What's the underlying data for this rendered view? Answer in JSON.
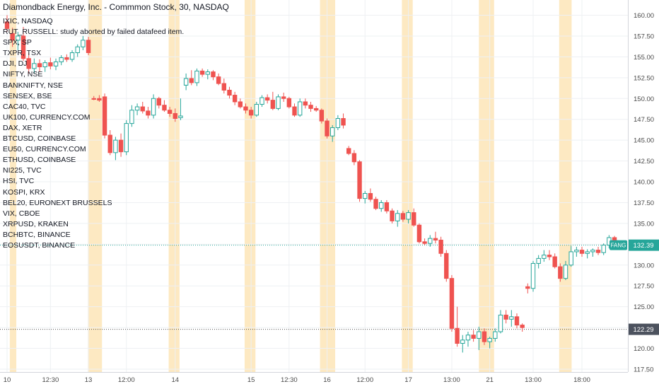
{
  "header": {
    "title": "Diamondback Energy, Inc. - Commmon Stock, 30, NASDAQ"
  },
  "legend": {
    "items": [
      "IXIC, NASDAQ",
      "RUT_RUSSELL: study aborted by failed datafeed item.",
      "SPX, SP",
      "TXPR, TSX",
      "DJI, DJ",
      "NIFTY, NSE",
      "BANKNIFTY, NSE",
      "SENSEX, BSE",
      "CAC40, TVC",
      "UK100, CURRENCY.COM",
      "DAX, XETR",
      "BTCUSD, COINBASE",
      "EU50, CURRENCY.COM",
      "ETHUSD, COINBASE",
      "NI225, TVC",
      "HSI, TVC",
      "KOSPI, KRX",
      "BEL20, EURONEXT BRUSSELS",
      "VIX, CBOE",
      "XRPUSD, KRAKEN",
      "BCHBTC, BINANCE",
      "EOSUSDT, BINANCE"
    ]
  },
  "price_labels": {
    "symbol_tag": "FANG",
    "last_price": "132.39",
    "crosshair_price": "122.29"
  },
  "colors": {
    "up": "#26a69a",
    "down": "#ef5350",
    "session_band": "#fde9c2",
    "grid": "#eef0f3",
    "price_tag": "#26a69a"
  },
  "chart_data": {
    "type": "candlestick",
    "title": "Diamondback Energy, Inc. - Commmon Stock, 30, NASDAQ",
    "interval": "30",
    "y_ticks": [
      117.5,
      120.0,
      122.5,
      125.0,
      127.5,
      130.0,
      132.5,
      135.0,
      137.5,
      140.0,
      142.5,
      145.0,
      147.5,
      150.0,
      152.5,
      155.0,
      157.5,
      160.0
    ],
    "ylim": [
      117.3,
      160.6
    ],
    "x_tick_labels": [
      {
        "label": "10",
        "bar": 0
      },
      {
        "label": "12:30",
        "bar": 8
      },
      {
        "label": "13",
        "bar": 15
      },
      {
        "label": "12:00",
        "bar": 22
      },
      {
        "label": "14",
        "bar": 31
      },
      {
        "label": "15",
        "bar": 45
      },
      {
        "label": "12:30",
        "bar": 52
      },
      {
        "label": "16",
        "bar": 59
      },
      {
        "label": "12:00",
        "bar": 66
      },
      {
        "label": "17",
        "bar": 74
      },
      {
        "label": "13:00",
        "bar": 82
      },
      {
        "label": "21",
        "bar": 89
      },
      {
        "label": "13:00",
        "bar": 97
      },
      {
        "label": "18:00",
        "bar": 106
      }
    ],
    "session_bands": [
      [
        1,
        1.2
      ],
      [
        15.4,
        17.0
      ],
      [
        30.3,
        31.3
      ],
      [
        44.3,
        45.3
      ],
      [
        58.2,
        60.0
      ],
      [
        73.3,
        74.3
      ],
      [
        87.5,
        89.3
      ],
      [
        102.3,
        103.6
      ]
    ],
    "last_price": 132.39,
    "crosshair_price": 122.29,
    "candles": [
      {
        "o": 159.2,
        "h": 160.0,
        "l": 158.0,
        "c": 158.4
      },
      {
        "o": 157.8,
        "h": 158.5,
        "l": 156.2,
        "c": 157.0
      },
      {
        "o": 157.0,
        "h": 158.0,
        "l": 155.8,
        "c": 157.5
      },
      {
        "o": 157.5,
        "h": 158.6,
        "l": 154.5,
        "c": 154.8
      },
      {
        "o": 154.8,
        "h": 155.5,
        "l": 153.0,
        "c": 153.6
      },
      {
        "o": 153.6,
        "h": 154.8,
        "l": 153.0,
        "c": 154.2
      },
      {
        "o": 154.2,
        "h": 154.7,
        "l": 153.2,
        "c": 153.8
      },
      {
        "o": 153.8,
        "h": 154.6,
        "l": 153.2,
        "c": 154.3
      },
      {
        "o": 154.3,
        "h": 154.9,
        "l": 153.5,
        "c": 153.9
      },
      {
        "o": 153.9,
        "h": 154.8,
        "l": 153.4,
        "c": 154.4
      },
      {
        "o": 154.4,
        "h": 155.2,
        "l": 154.0,
        "c": 154.9
      },
      {
        "o": 154.9,
        "h": 155.3,
        "l": 154.4,
        "c": 154.7
      },
      {
        "o": 154.7,
        "h": 155.8,
        "l": 154.4,
        "c": 155.5
      },
      {
        "o": 155.5,
        "h": 156.5,
        "l": 155.0,
        "c": 156.2
      },
      {
        "o": 156.2,
        "h": 157.5,
        "l": 155.8,
        "c": 157.0
      },
      {
        "o": 157.0,
        "h": 157.4,
        "l": 155.2,
        "c": 155.5
      },
      {
        "o": 150.0,
        "h": 150.3,
        "l": 149.8,
        "c": 149.9
      },
      {
        "o": 150.0,
        "h": 150.4,
        "l": 149.6,
        "c": 149.8
      },
      {
        "o": 150.2,
        "h": 150.6,
        "l": 145.2,
        "c": 145.6
      },
      {
        "o": 145.6,
        "h": 146.2,
        "l": 143.2,
        "c": 143.5
      },
      {
        "o": 143.5,
        "h": 145.4,
        "l": 142.6,
        "c": 145.0
      },
      {
        "o": 145.0,
        "h": 145.8,
        "l": 143.0,
        "c": 143.6
      },
      {
        "o": 143.6,
        "h": 147.4,
        "l": 143.2,
        "c": 147.0
      },
      {
        "o": 147.0,
        "h": 149.2,
        "l": 146.6,
        "c": 148.6
      },
      {
        "o": 148.6,
        "h": 149.4,
        "l": 148.0,
        "c": 149.0
      },
      {
        "o": 149.0,
        "h": 149.6,
        "l": 148.2,
        "c": 148.5
      },
      {
        "o": 148.5,
        "h": 149.0,
        "l": 147.6,
        "c": 148.0
      },
      {
        "o": 148.0,
        "h": 150.5,
        "l": 147.6,
        "c": 150.0
      },
      {
        "o": 150.0,
        "h": 150.2,
        "l": 148.8,
        "c": 149.2
      },
      {
        "o": 149.2,
        "h": 149.8,
        "l": 148.4,
        "c": 148.6
      },
      {
        "o": 148.6,
        "h": 149.0,
        "l": 147.8,
        "c": 148.2
      },
      {
        "o": 148.2,
        "h": 148.8,
        "l": 147.2,
        "c": 147.6
      },
      {
        "o": 147.7,
        "h": 150.0,
        "l": 147.4,
        "c": 147.9
      },
      {
        "o": 151.6,
        "h": 153.0,
        "l": 151.0,
        "c": 152.4
      },
      {
        "o": 152.4,
        "h": 153.4,
        "l": 151.6,
        "c": 151.9
      },
      {
        "o": 151.9,
        "h": 153.6,
        "l": 151.5,
        "c": 153.3
      },
      {
        "o": 153.3,
        "h": 153.6,
        "l": 152.6,
        "c": 152.9
      },
      {
        "o": 152.9,
        "h": 153.5,
        "l": 152.3,
        "c": 153.2
      },
      {
        "o": 153.2,
        "h": 153.4,
        "l": 152.2,
        "c": 152.6
      },
      {
        "o": 152.6,
        "h": 153.0,
        "l": 151.6,
        "c": 151.8
      },
      {
        "o": 151.8,
        "h": 152.4,
        "l": 150.6,
        "c": 151.0
      },
      {
        "o": 151.0,
        "h": 151.4,
        "l": 150.0,
        "c": 150.4
      },
      {
        "o": 150.4,
        "h": 150.8,
        "l": 149.2,
        "c": 149.6
      },
      {
        "o": 149.6,
        "h": 150.0,
        "l": 148.8,
        "c": 149.0
      },
      {
        "o": 149.0,
        "h": 149.4,
        "l": 148.2,
        "c": 148.6
      },
      {
        "o": 148.6,
        "h": 149.0,
        "l": 147.6,
        "c": 148.0
      },
      {
        "o": 148.0,
        "h": 149.6,
        "l": 147.8,
        "c": 149.3
      },
      {
        "o": 149.3,
        "h": 150.4,
        "l": 149.0,
        "c": 150.1
      },
      {
        "o": 150.1,
        "h": 150.5,
        "l": 149.4,
        "c": 149.8
      },
      {
        "o": 149.8,
        "h": 150.8,
        "l": 148.6,
        "c": 148.8
      },
      {
        "o": 148.8,
        "h": 150.5,
        "l": 148.6,
        "c": 150.2
      },
      {
        "o": 150.2,
        "h": 150.7,
        "l": 149.6,
        "c": 150.0
      },
      {
        "o": 150.0,
        "h": 150.2,
        "l": 148.8,
        "c": 149.0
      },
      {
        "o": 149.0,
        "h": 149.4,
        "l": 147.8,
        "c": 148.0
      },
      {
        "o": 148.0,
        "h": 150.0,
        "l": 147.8,
        "c": 149.6
      },
      {
        "o": 149.6,
        "h": 150.0,
        "l": 148.8,
        "c": 149.2
      },
      {
        "o": 149.2,
        "h": 149.6,
        "l": 148.4,
        "c": 148.8
      },
      {
        "o": 148.8,
        "h": 149.1,
        "l": 148.4,
        "c": 148.6
      },
      {
        "o": 148.6,
        "h": 148.8,
        "l": 147.0,
        "c": 147.3
      },
      {
        "o": 147.3,
        "h": 147.6,
        "l": 145.2,
        "c": 145.5
      },
      {
        "o": 145.5,
        "h": 146.8,
        "l": 144.8,
        "c": 146.5
      },
      {
        "o": 146.5,
        "h": 148.0,
        "l": 146.2,
        "c": 147.6
      },
      {
        "o": 147.6,
        "h": 148.2,
        "l": 146.4,
        "c": 146.8
      },
      {
        "o": 144.0,
        "h": 144.3,
        "l": 143.2,
        "c": 143.4
      },
      {
        "o": 143.4,
        "h": 143.8,
        "l": 142.0,
        "c": 142.4
      },
      {
        "o": 142.4,
        "h": 142.6,
        "l": 137.6,
        "c": 138.0
      },
      {
        "o": 138.0,
        "h": 138.9,
        "l": 137.4,
        "c": 138.6
      },
      {
        "o": 138.6,
        "h": 139.2,
        "l": 137.6,
        "c": 137.9
      },
      {
        "o": 137.9,
        "h": 138.2,
        "l": 136.6,
        "c": 136.8
      },
      {
        "o": 136.8,
        "h": 137.8,
        "l": 136.4,
        "c": 137.5
      },
      {
        "o": 137.5,
        "h": 137.8,
        "l": 136.2,
        "c": 136.5
      },
      {
        "o": 136.5,
        "h": 136.8,
        "l": 135.0,
        "c": 135.3
      },
      {
        "o": 135.3,
        "h": 136.6,
        "l": 134.6,
        "c": 136.2
      },
      {
        "o": 136.2,
        "h": 136.5,
        "l": 135.2,
        "c": 135.5
      },
      {
        "o": 135.5,
        "h": 136.6,
        "l": 135.0,
        "c": 136.3
      },
      {
        "o": 136.3,
        "h": 136.8,
        "l": 134.6,
        "c": 134.8
      },
      {
        "o": 134.8,
        "h": 135.0,
        "l": 132.6,
        "c": 132.8
      },
      {
        "o": 132.8,
        "h": 133.2,
        "l": 132.4,
        "c": 132.6
      },
      {
        "o": 132.6,
        "h": 133.6,
        "l": 132.2,
        "c": 133.2
      },
      {
        "o": 133.2,
        "h": 134.0,
        "l": 132.6,
        "c": 133.0
      },
      {
        "o": 133.0,
        "h": 133.4,
        "l": 131.0,
        "c": 131.4
      },
      {
        "o": 131.4,
        "h": 131.8,
        "l": 128.0,
        "c": 128.4
      },
      {
        "o": 128.4,
        "h": 128.8,
        "l": 122.0,
        "c": 122.4
      },
      {
        "o": 122.4,
        "h": 125.0,
        "l": 120.2,
        "c": 120.6
      },
      {
        "o": 120.6,
        "h": 121.6,
        "l": 119.5,
        "c": 121.0
      },
      {
        "o": 121.0,
        "h": 122.0,
        "l": 120.2,
        "c": 121.6
      },
      {
        "o": 121.6,
        "h": 122.2,
        "l": 120.8,
        "c": 121.2
      },
      {
        "o": 121.2,
        "h": 122.6,
        "l": 119.8,
        "c": 122.0
      },
      {
        "o": 122.0,
        "h": 122.4,
        "l": 120.4,
        "c": 120.8
      },
      {
        "o": 120.8,
        "h": 121.4,
        "l": 120.0,
        "c": 121.2
      },
      {
        "o": 121.2,
        "h": 122.4,
        "l": 120.8,
        "c": 122.0
      },
      {
        "o": 122.0,
        "h": 124.6,
        "l": 121.8,
        "c": 124.0
      },
      {
        "o": 124.0,
        "h": 124.6,
        "l": 123.0,
        "c": 123.5
      },
      {
        "o": 123.5,
        "h": 124.6,
        "l": 122.6,
        "c": 123.8
      },
      {
        "o": 123.8,
        "h": 124.2,
        "l": 122.4,
        "c": 122.8
      },
      {
        "o": 122.8,
        "h": 123.0,
        "l": 122.0,
        "c": 122.5
      },
      {
        "o": 127.4,
        "h": 127.8,
        "l": 126.6,
        "c": 127.2
      },
      {
        "o": 127.2,
        "h": 130.5,
        "l": 126.8,
        "c": 130.2
      },
      {
        "o": 130.2,
        "h": 131.2,
        "l": 129.6,
        "c": 130.8
      },
      {
        "o": 130.8,
        "h": 131.8,
        "l": 130.4,
        "c": 131.2
      },
      {
        "o": 131.2,
        "h": 131.8,
        "l": 130.6,
        "c": 131.0
      },
      {
        "o": 131.0,
        "h": 131.4,
        "l": 129.6,
        "c": 129.8
      },
      {
        "o": 129.8,
        "h": 130.2,
        "l": 128.0,
        "c": 128.4
      },
      {
        "o": 128.4,
        "h": 130.5,
        "l": 128.2,
        "c": 130.0
      },
      {
        "o": 130.0,
        "h": 132.3,
        "l": 129.8,
        "c": 131.6
      },
      {
        "o": 131.6,
        "h": 132.2,
        "l": 131.0,
        "c": 131.8
      },
      {
        "o": 131.8,
        "h": 132.2,
        "l": 131.0,
        "c": 131.4
      },
      {
        "o": 131.4,
        "h": 131.9,
        "l": 130.8,
        "c": 131.6
      },
      {
        "o": 131.6,
        "h": 132.0,
        "l": 131.0,
        "c": 131.8
      },
      {
        "o": 131.8,
        "h": 132.2,
        "l": 131.2,
        "c": 131.5
      },
      {
        "o": 131.5,
        "h": 132.6,
        "l": 131.2,
        "c": 132.4
      },
      {
        "o": 132.4,
        "h": 133.6,
        "l": 132.0,
        "c": 133.3
      },
      {
        "o": 133.3,
        "h": 133.5,
        "l": 132.1,
        "c": 132.4
      },
      {
        "o": 132.39,
        "h": 132.5,
        "l": 132.3,
        "c": 132.39
      }
    ]
  }
}
